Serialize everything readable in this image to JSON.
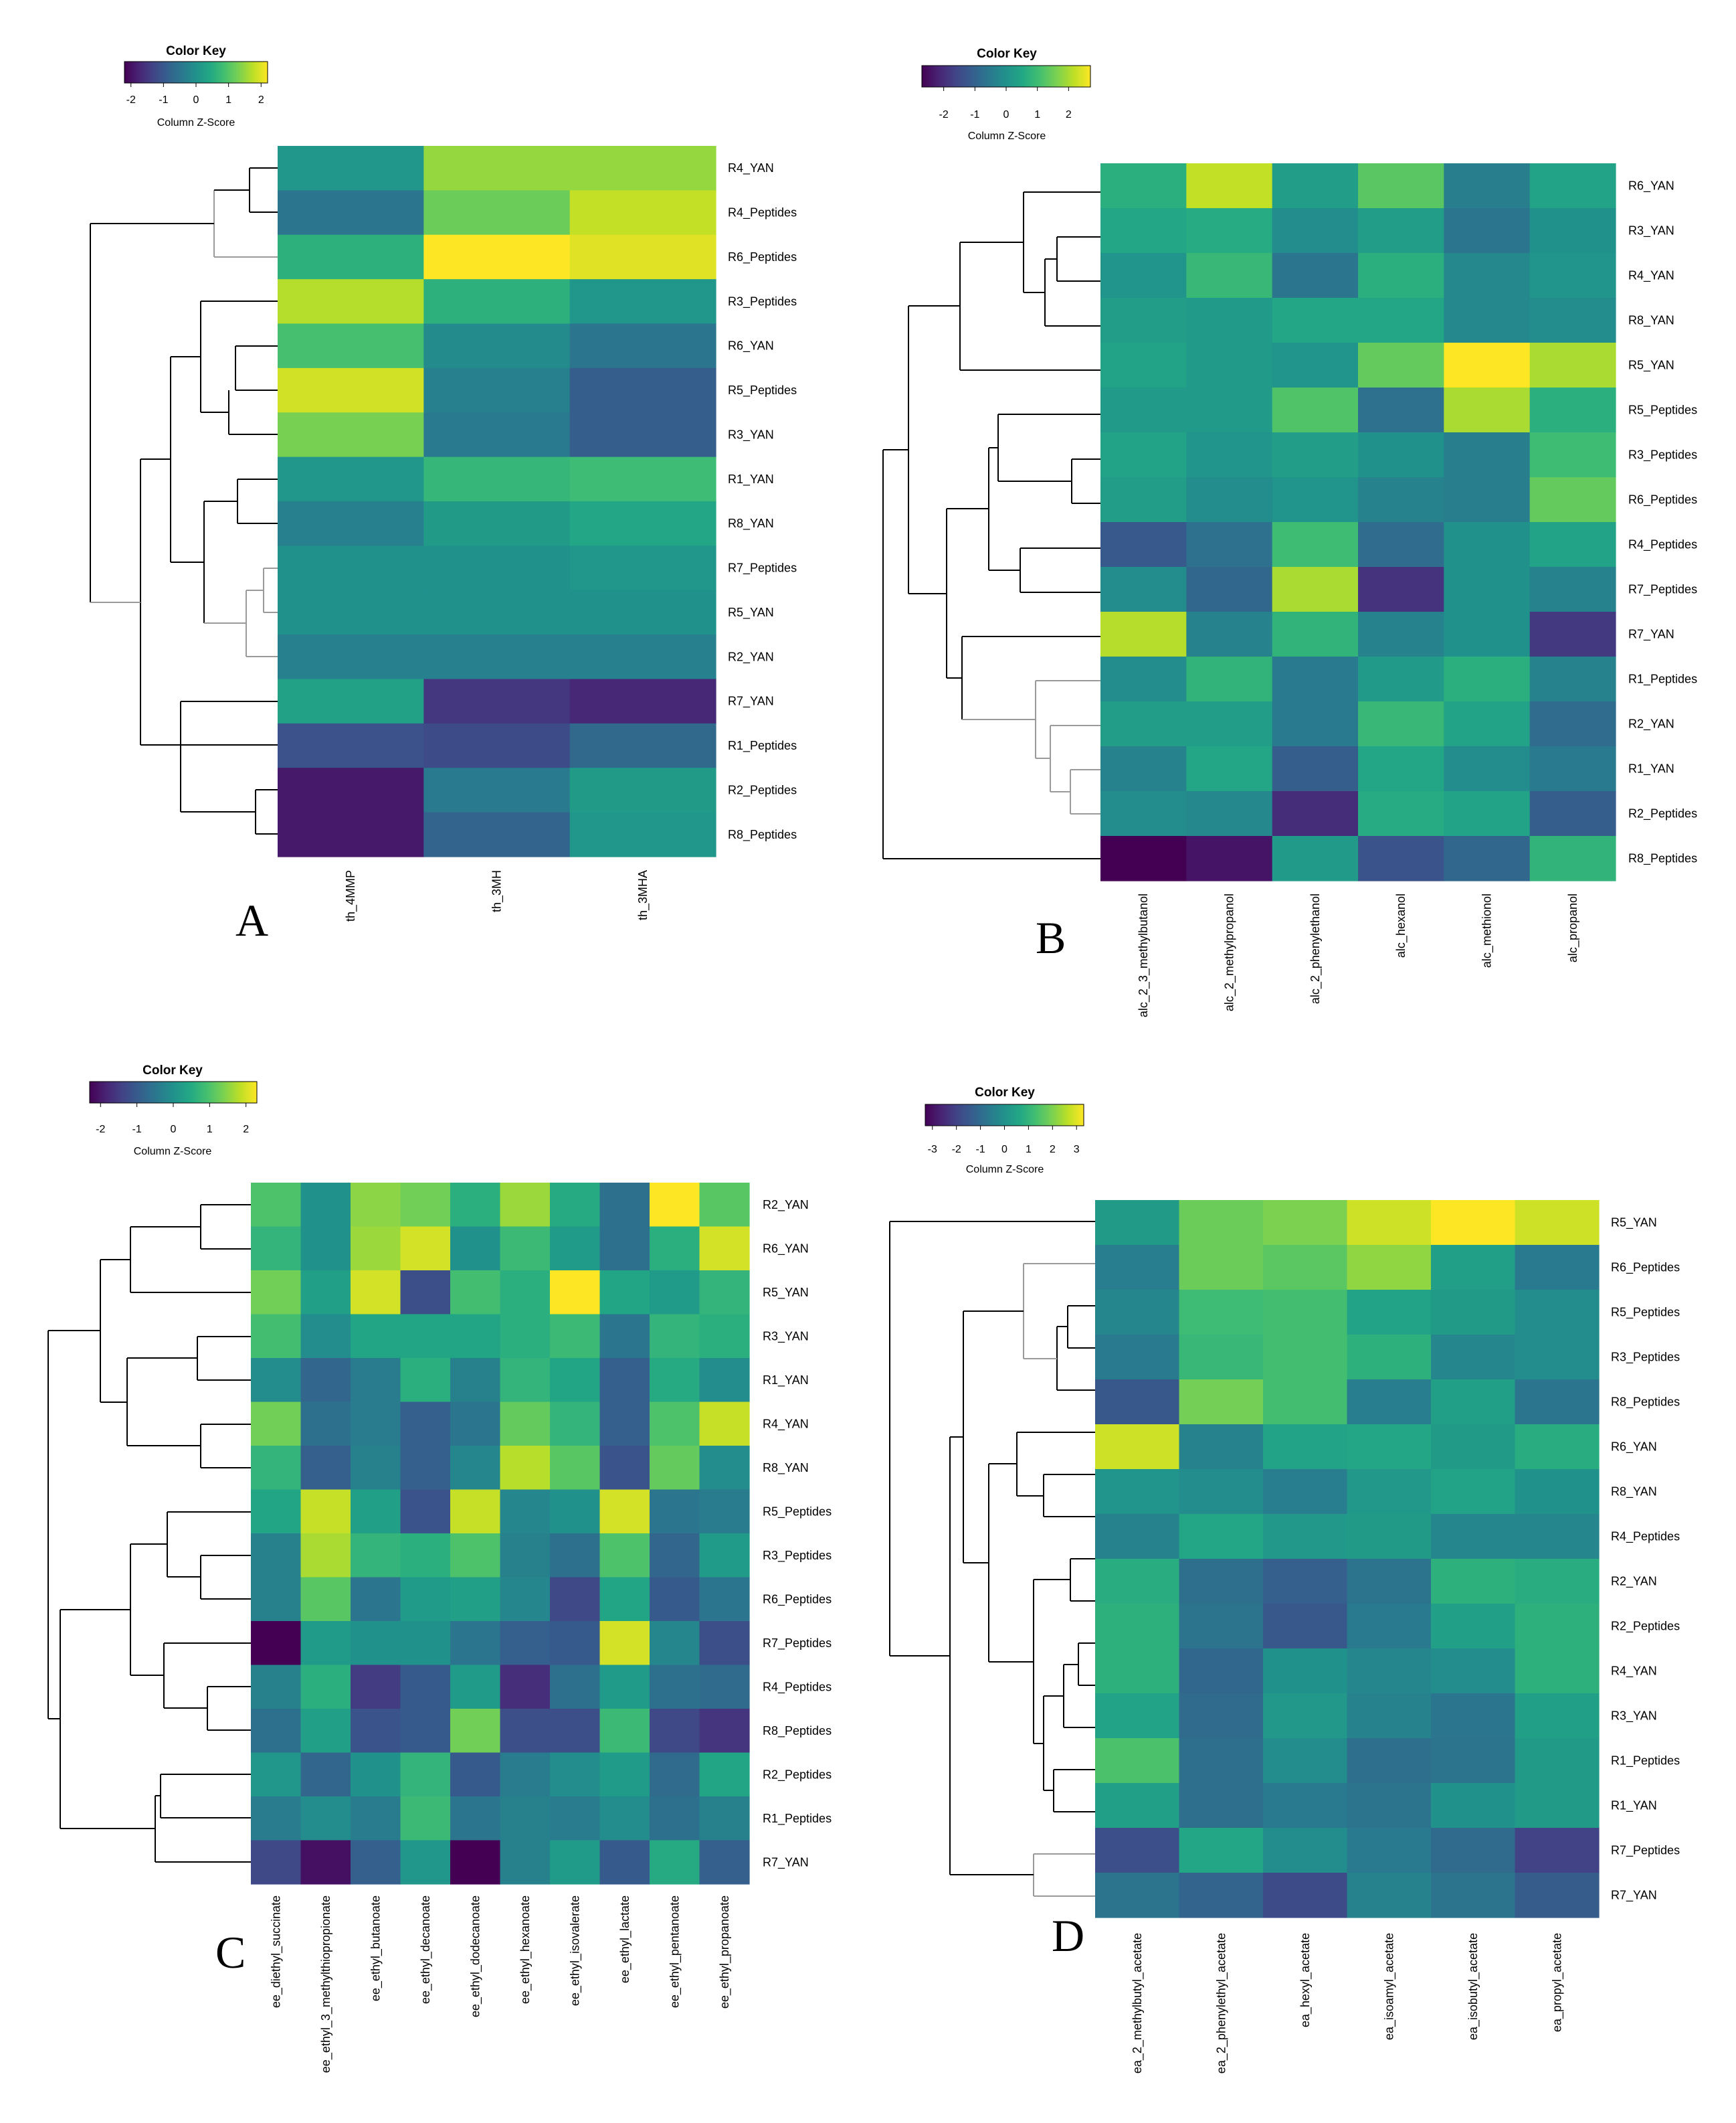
{
  "chart_data": [
    {
      "type": "heatmap",
      "panel": "A",
      "color_key": {
        "title": "Color Key",
        "subtitle": "Column Z-Score",
        "ticks": [
          -2,
          -1,
          0,
          1,
          2
        ],
        "range": [
          -2.2,
          2.2
        ],
        "colormap": "viridis"
      },
      "columns": [
        "th_4MMP",
        "th_3MH",
        "th_3MHA"
      ],
      "rows": [
        "R4_YAN",
        "R4_Peptides",
        "R6_Peptides",
        "R3_Peptides",
        "R6_YAN",
        "R5_Peptides",
        "R3_YAN",
        "R1_YAN",
        "R8_YAN",
        "R7_Peptides",
        "R5_YAN",
        "R2_YAN",
        "R7_YAN",
        "R1_Peptides",
        "R2_Peptides",
        "R8_Peptides"
      ],
      "values": [
        [
          0.1,
          1.5,
          1.5
        ],
        [
          -0.5,
          1.2,
          1.8
        ],
        [
          0.6,
          2.2,
          2.0
        ],
        [
          1.7,
          0.6,
          0.1
        ],
        [
          0.9,
          -0.1,
          -0.5
        ],
        [
          1.9,
          -0.3,
          -0.9
        ],
        [
          1.3,
          -0.4,
          -0.9
        ],
        [
          0.1,
          0.7,
          0.8
        ],
        [
          -0.3,
          0.2,
          0.4
        ],
        [
          0.0,
          0.0,
          0.1
        ],
        [
          0.0,
          0.0,
          0.0
        ],
        [
          -0.3,
          -0.3,
          -0.3
        ],
        [
          0.3,
          -1.5,
          -1.7
        ],
        [
          -1.1,
          -1.2,
          -0.7
        ],
        [
          -1.9,
          -0.4,
          0.2
        ],
        [
          -1.9,
          -0.8,
          0.1
        ]
      ]
    },
    {
      "type": "heatmap",
      "panel": "B",
      "color_key": {
        "title": "Color Key",
        "subtitle": "Column Z-Score",
        "ticks": [
          -2,
          -1,
          0,
          1,
          2
        ],
        "range": [
          -2.7,
          2.7
        ],
        "colormap": "viridis"
      },
      "columns": [
        "alc_2_3_methylbutanol",
        "alc_2_methylpropanol",
        "alc_2_phenylethanol",
        "alc_hexanol",
        "alc_methionol",
        "alc_propanol"
      ],
      "rows": [
        "R6_YAN",
        "R3_YAN",
        "R4_YAN",
        "R8_YAN",
        "R5_YAN",
        "R5_Peptides",
        "R3_Peptides",
        "R6_Peptides",
        "R4_Peptides",
        "R7_Peptides",
        "R7_YAN",
        "R1_Peptides",
        "R2_YAN",
        "R1_YAN",
        "R2_Peptides",
        "R8_Peptides"
      ],
      "values": [
        [
          0.7,
          2.2,
          0.3,
          1.3,
          -0.4,
          0.4
        ],
        [
          0.5,
          0.6,
          -0.1,
          0.3,
          -0.6,
          0.0
        ],
        [
          0.1,
          0.9,
          -0.6,
          0.7,
          -0.2,
          0.1
        ],
        [
          0.3,
          0.2,
          0.5,
          0.5,
          -0.2,
          -0.1
        ],
        [
          0.4,
          0.2,
          0.1,
          1.4,
          2.7,
          2.0
        ],
        [
          0.2,
          0.2,
          1.2,
          -0.7,
          2.0,
          0.7
        ],
        [
          0.4,
          0.1,
          0.3,
          0.0,
          -0.4,
          1.0
        ],
        [
          0.3,
          -0.1,
          0.1,
          -0.3,
          -0.4,
          1.4
        ],
        [
          -1.2,
          -0.7,
          1.0,
          -0.8,
          0.0,
          0.4
        ],
        [
          -0.1,
          -0.9,
          2.0,
          -1.9,
          0.0,
          -0.3
        ],
        [
          2.1,
          -0.3,
          0.8,
          -0.3,
          0.0,
          -1.8
        ],
        [
          -0.1,
          0.8,
          -0.5,
          0.2,
          0.7,
          -0.3
        ],
        [
          0.3,
          0.3,
          -0.5,
          0.9,
          0.4,
          -0.8
        ],
        [
          -0.3,
          0.5,
          -1.1,
          0.5,
          -0.1,
          -0.5
        ],
        [
          -0.1,
          -0.2,
          -2.0,
          0.6,
          0.4,
          -1.1
        ],
        [
          -2.7,
          -2.4,
          0.2,
          -1.3,
          -0.9,
          0.8
        ]
      ]
    },
    {
      "type": "heatmap",
      "panel": "C",
      "color_key": {
        "title": "Color Key",
        "subtitle": "Column Z-Score",
        "ticks": [
          -2,
          -1,
          0,
          1,
          2
        ],
        "range": [
          -2.3,
          2.3
        ],
        "colormap": "viridis"
      },
      "columns": [
        "ee_diethyl_succinate",
        "ee_ethyl_3_methylthiopropionate",
        "ee_ethyl_butanoate",
        "ee_ethyl_decanoate",
        "ee_ethyl_dodecanoate",
        "ee_ethyl_hexanoate",
        "ee_ethyl_isovalerate",
        "ee_ethyl_lactate",
        "ee_ethyl_pentanoate",
        "ee_ethyl_propanoate"
      ],
      "rows": [
        "R2_YAN",
        "R6_YAN",
        "R5_YAN",
        "R3_YAN",
        "R1_YAN",
        "R4_YAN",
        "R8_YAN",
        "R5_Peptides",
        "R3_Peptides",
        "R6_Peptides",
        "R7_Peptides",
        "R4_Peptides",
        "R8_Peptides",
        "R2_Peptides",
        "R1_Peptides",
        "R7_YAN"
      ],
      "values": [
        [
          1.0,
          0.0,
          1.5,
          1.3,
          0.6,
          1.6,
          0.5,
          -0.6,
          2.3,
          1.1
        ],
        [
          0.7,
          0.0,
          1.6,
          2.0,
          0.0,
          0.8,
          0.2,
          -0.6,
          0.6,
          2.0
        ],
        [
          1.3,
          0.3,
          2.0,
          -1.2,
          0.9,
          0.6,
          2.3,
          0.4,
          0.2,
          0.7
        ],
        [
          0.9,
          -0.1,
          0.4,
          0.4,
          0.4,
          0.6,
          0.8,
          -0.5,
          0.7,
          0.6
        ],
        [
          -0.1,
          -0.8,
          -0.4,
          0.6,
          -0.3,
          0.7,
          0.4,
          -0.9,
          0.5,
          -0.1
        ],
        [
          1.3,
          -0.6,
          -0.4,
          -0.9,
          -0.5,
          1.2,
          0.7,
          -0.9,
          1.0,
          1.9
        ],
        [
          0.7,
          -0.9,
          -0.3,
          -0.9,
          -0.2,
          1.8,
          1.1,
          -1.1,
          1.2,
          -0.1
        ],
        [
          0.4,
          1.9,
          0.3,
          -1.1,
          1.9,
          -0.2,
          0.0,
          2.0,
          -0.5,
          -0.4
        ],
        [
          -0.3,
          1.7,
          0.7,
          0.6,
          1.0,
          -0.3,
          -0.6,
          1.0,
          -0.8,
          0.2
        ],
        [
          -0.3,
          1.1,
          -0.5,
          0.2,
          0.3,
          -0.2,
          -1.3,
          0.4,
          -1.0,
          -0.5
        ],
        [
          -2.3,
          0.2,
          0.0,
          0.0,
          -0.5,
          -0.9,
          -1.0,
          2.0,
          -0.2,
          -1.2
        ],
        [
          -0.3,
          0.6,
          -1.5,
          -1.0,
          0.2,
          -1.7,
          -0.6,
          0.2,
          -0.6,
          -0.7
        ],
        [
          -0.6,
          0.3,
          -1.1,
          -1.0,
          1.3,
          -1.2,
          -1.2,
          0.8,
          -1.3,
          -1.6
        ],
        [
          0.1,
          -0.8,
          0.0,
          0.7,
          -1.0,
          -0.4,
          -0.1,
          0.2,
          -0.7,
          0.4
        ],
        [
          -0.4,
          -0.1,
          -0.4,
          0.8,
          -0.5,
          -0.3,
          -0.4,
          -0.1,
          -0.6,
          -0.3
        ],
        [
          -1.3,
          -2.1,
          -0.9,
          0.1,
          -2.3,
          -0.3,
          0.2,
          -1.0,
          0.5,
          -0.9
        ]
      ]
    },
    {
      "type": "heatmap",
      "panel": "D",
      "color_key": {
        "title": "Color Key",
        "subtitle": "Column Z-Score",
        "ticks": [
          -3,
          -2,
          -1,
          0,
          1,
          2,
          3
        ],
        "range": [
          -3.3,
          3.3
        ],
        "colormap": "viridis"
      },
      "columns": [
        "ea_2_methylbutyl_acetate",
        "ea_2_phenylethyl_acetate",
        "ea_hexyl_acetate",
        "ea_isoamyl_acetate",
        "ea_isobutyl_acetate",
        "ea_propyl_acetate"
      ],
      "rows": [
        "R5_YAN",
        "R6_Peptides",
        "R5_Peptides",
        "R3_Peptides",
        "R8_Peptides",
        "R6_YAN",
        "R8_YAN",
        "R4_Peptides",
        "R2_YAN",
        "R2_Peptides",
        "R4_YAN",
        "R3_YAN",
        "R1_Peptides",
        "R1_YAN",
        "R7_Peptides",
        "R7_YAN"
      ],
      "values": [
        [
          0.3,
          1.8,
          2.0,
          2.8,
          3.3,
          2.8
        ],
        [
          -0.5,
          1.8,
          1.6,
          2.2,
          0.4,
          -0.6
        ],
        [
          -0.3,
          1.2,
          1.3,
          0.5,
          0.3,
          -0.1
        ],
        [
          -0.6,
          1.1,
          1.3,
          0.9,
          -0.3,
          -0.1
        ],
        [
          -1.5,
          1.9,
          1.3,
          -0.5,
          0.4,
          -0.7
        ],
        [
          2.8,
          -0.4,
          0.5,
          0.6,
          0.3,
          0.8
        ],
        [
          0.1,
          -0.1,
          -0.5,
          0.2,
          0.5,
          0.0
        ],
        [
          -0.4,
          0.6,
          0.2,
          0.3,
          -0.3,
          -0.3
        ],
        [
          0.8,
          -0.9,
          -1.3,
          -0.8,
          0.9,
          0.8
        ],
        [
          0.9,
          -0.8,
          -1.5,
          -0.6,
          0.4,
          0.9
        ],
        [
          0.9,
          -1.1,
          0.0,
          -0.3,
          -0.1,
          0.9
        ],
        [
          0.5,
          -1.0,
          0.2,
          -0.4,
          -0.7,
          0.4
        ],
        [
          1.4,
          -0.9,
          -0.1,
          -0.9,
          -0.8,
          0.3
        ],
        [
          0.4,
          -0.9,
          -0.6,
          -0.8,
          0.0,
          0.3
        ],
        [
          -1.7,
          0.6,
          -0.1,
          -0.6,
          -1.0,
          -2.0
        ],
        [
          -0.8,
          -1.2,
          -1.8,
          -0.4,
          -0.8,
          -1.4
        ]
      ]
    }
  ]
}
